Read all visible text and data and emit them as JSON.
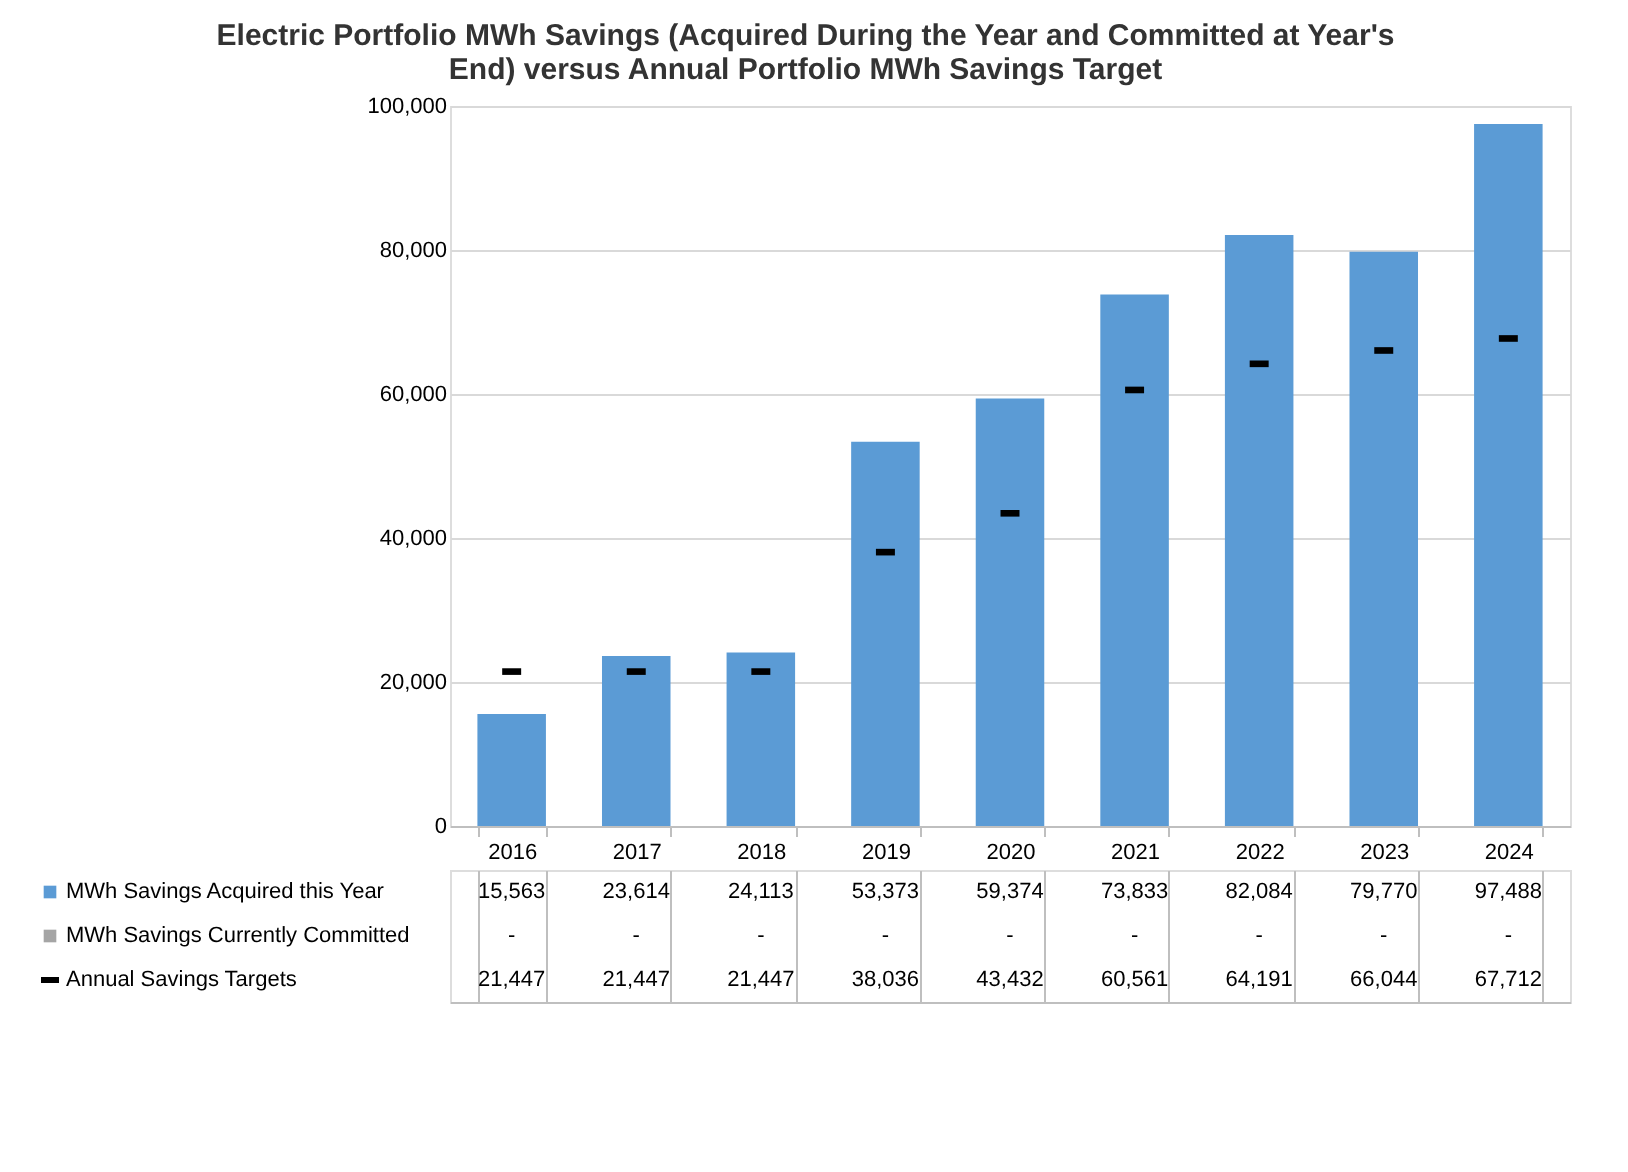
{
  "chart_data": {
    "type": "bar",
    "title": "Electric Portfolio MWh Savings (Acquired During the Year and Committed at Year's End) versus Annual Portfolio MWh Savings Target",
    "categories": [
      "2016",
      "2017",
      "2018",
      "2019",
      "2020",
      "2021",
      "2022",
      "2023",
      "2024"
    ],
    "series": [
      {
        "name": "MWh Savings Acquired this Year",
        "color": "#5b9bd5",
        "values": [
          15563,
          23614,
          24113,
          53373,
          59374,
          73833,
          82084,
          79770,
          97488
        ],
        "value_labels": [
          "15,563",
          "23,614",
          "24,113",
          "53,373",
          "59,374",
          "73,833",
          "82,084",
          "79,770",
          "97,488"
        ]
      },
      {
        "name": "MWh Savings Currently Committed",
        "color": "#a5a5a5",
        "values": [
          null,
          null,
          null,
          null,
          null,
          null,
          null,
          null,
          null
        ],
        "value_labels": [
          "-",
          "-",
          "-",
          "-",
          "-",
          "-",
          "-",
          "-",
          "-"
        ]
      },
      {
        "name": "Annual Savings Targets",
        "type": "scatter",
        "color": "#000000",
        "values": [
          21447,
          21447,
          21447,
          38036,
          43432,
          60561,
          64191,
          66044,
          67712
        ],
        "value_labels": [
          "21,447",
          "21,447",
          "21,447",
          "38,036",
          "43,432",
          "60,561",
          "64,191",
          "66,044",
          "67,712"
        ]
      }
    ],
    "ylim": [
      0,
      100000
    ],
    "yticks": [
      0,
      {
        "value": 20000,
        "label": "20,000"
      },
      {
        "value": 40000,
        "label": "40,000"
      },
      {
        "value": 60000,
        "label": "60,000"
      },
      {
        "value": 80000,
        "label": "80,000"
      },
      {
        "value": 100000,
        "label": "100,000"
      }
    ],
    "grid": "y",
    "legend": "bottom",
    "data_labels": true
  }
}
